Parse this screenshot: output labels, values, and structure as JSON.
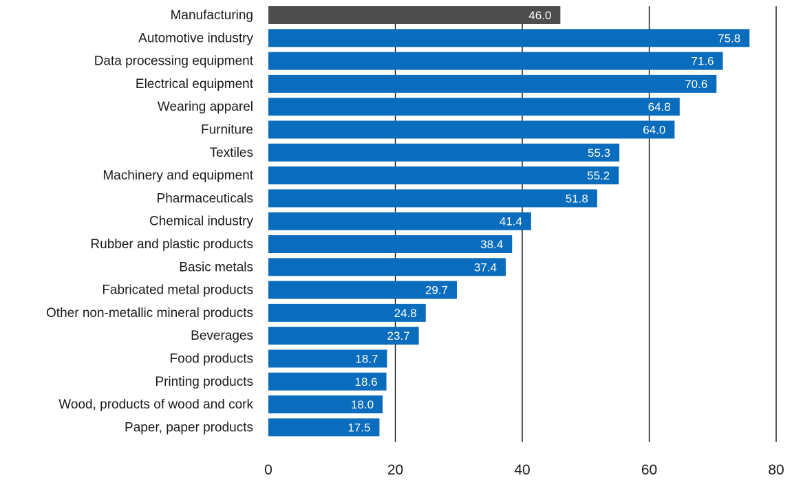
{
  "chart_data": {
    "type": "bar",
    "orientation": "horizontal",
    "title": "",
    "xlabel": "",
    "ylabel": "",
    "xlim": [
      0,
      80
    ],
    "ticks": [
      0,
      20,
      40,
      60,
      80
    ],
    "tick_labels": [
      "0",
      "20",
      "40",
      "60",
      "80"
    ],
    "grid": true,
    "legend": "none",
    "categories": [
      "Manufacturing",
      "Automotive industry",
      "Data processing equipment",
      "Electrical equipment",
      "Wearing apparel",
      "Furniture",
      "Textiles",
      "Machinery and equipment",
      "Pharmaceuticals",
      "Chemical industry",
      "Rubber and plastic products",
      "Basic metals",
      "Fabricated metal products",
      "Other non-metallic mineral products",
      "Beverages",
      "Food products",
      "Printing products",
      "Wood, products of wood and cork",
      "Paper, paper products"
    ],
    "values": [
      46.0,
      75.8,
      71.6,
      70.6,
      64.8,
      64.0,
      55.3,
      55.2,
      51.8,
      41.4,
      38.4,
      37.4,
      29.7,
      24.8,
      23.7,
      18.7,
      18.6,
      18.0,
      17.5
    ],
    "value_labels": [
      "46.0",
      "75.8",
      "71.6",
      "70.6",
      "64.8",
      "64.0",
      "55.3",
      "55.2",
      "51.8",
      "41.4",
      "38.4",
      "37.4",
      "29.7",
      "24.8",
      "23.7",
      "18.7",
      "18.6",
      "18.0",
      "17.5"
    ],
    "colors": {
      "highlight": "#4d4d4d",
      "bar": "#0a6cbd",
      "value_text": "#ffffff",
      "gridline": "#000000"
    },
    "highlight_index": 0
  }
}
